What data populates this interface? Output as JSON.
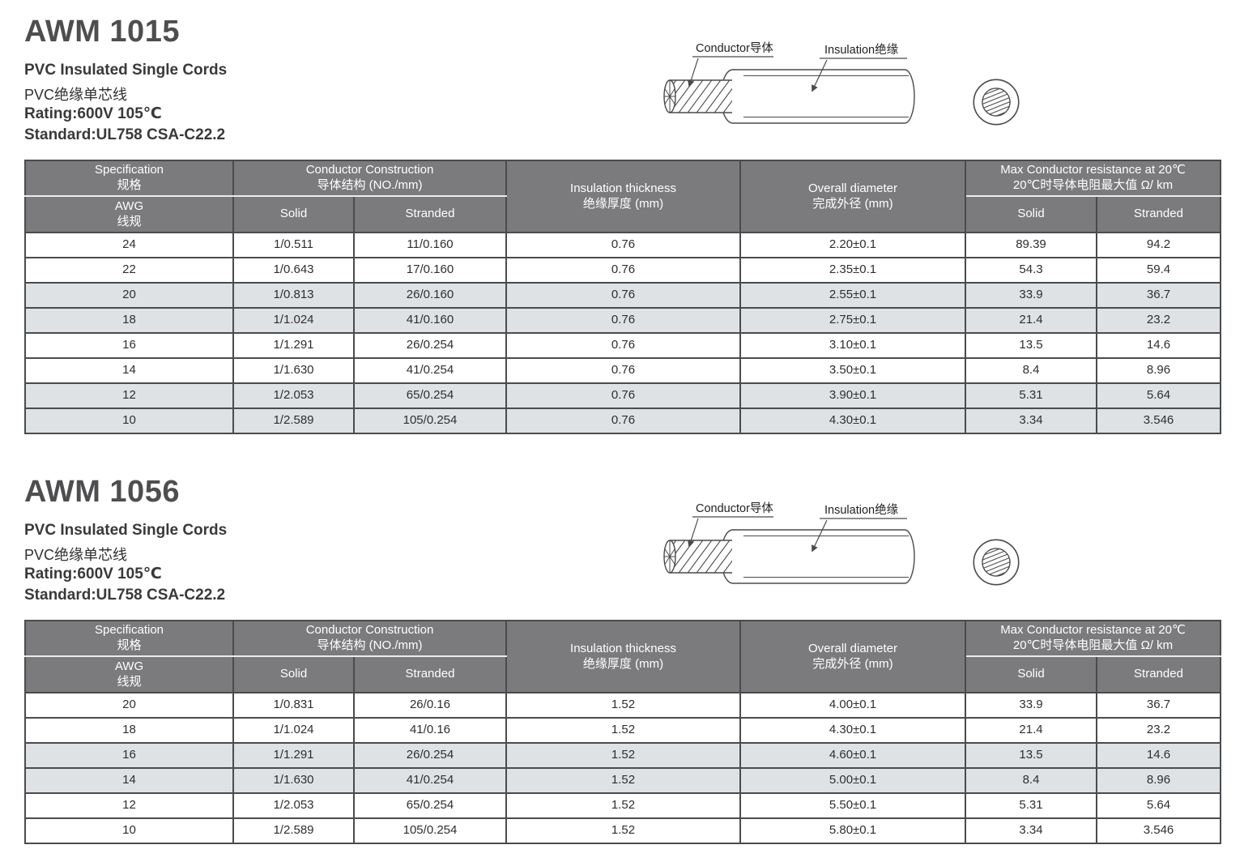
{
  "colors": {
    "header_bg": "#7b7b7d",
    "header_text": "#ffffff",
    "row_shade": "#dfe2e4",
    "table_border": "#4b4b4d",
    "title_text": "#4e4e50",
    "body_text": "#2e2e30"
  },
  "sections": [
    {
      "model": "AWM 1015",
      "subtitle_en": "PVC Insulated Single Cords",
      "subtitle_zh": "PVC绝缘单芯线",
      "rating": "Rating:600V 105℃",
      "standard": "Standard:UL758 CSA-C22.2",
      "diagram": {
        "conductor_label": "Conductor导体",
        "insulation_label": "Insulation绝缘"
      },
      "table": {
        "header": {
          "specification_en": "Specification",
          "specification_zh": "规格",
          "awg_en": "AWG",
          "awg_zh": "线规",
          "conductor_construction_en": "Conductor Construction",
          "conductor_construction_zh": "导体结构 (NO./mm)",
          "solid": "Solid",
          "stranded": "Stranded",
          "insulation_thickness_en": "Insulation thickness",
          "insulation_thickness_zh": "绝缘厚度 (mm)",
          "overall_diameter_en": "Overall diameter",
          "overall_diameter_zh": "完成外径 (mm)",
          "max_resistance_en": "Max Conductor resistance at 20℃",
          "max_resistance_zh": "20℃时导体电阻最大值 Ω/ km",
          "resistance_solid": "Solid",
          "resistance_stranded": "Stranded"
        },
        "rows": [
          {
            "awg": "24",
            "solid": "1/0.511",
            "stranded": "11/0.160",
            "thickness": "0.76",
            "diameter": "2.20±0.1",
            "res_solid": "89.39",
            "res_stranded": "94.2",
            "shaded": false
          },
          {
            "awg": "22",
            "solid": "1/0.643",
            "stranded": "17/0.160",
            "thickness": "0.76",
            "diameter": "2.35±0.1",
            "res_solid": "54.3",
            "res_stranded": "59.4",
            "shaded": false
          },
          {
            "awg": "20",
            "solid": "1/0.813",
            "stranded": "26/0.160",
            "thickness": "0.76",
            "diameter": "2.55±0.1",
            "res_solid": "33.9",
            "res_stranded": "36.7",
            "shaded": true
          },
          {
            "awg": "18",
            "solid": "1/1.024",
            "stranded": "41/0.160",
            "thickness": "0.76",
            "diameter": "2.75±0.1",
            "res_solid": "21.4",
            "res_stranded": "23.2",
            "shaded": true
          },
          {
            "awg": "16",
            "solid": "1/1.291",
            "stranded": "26/0.254",
            "thickness": "0.76",
            "diameter": "3.10±0.1",
            "res_solid": "13.5",
            "res_stranded": "14.6",
            "shaded": false
          },
          {
            "awg": "14",
            "solid": "1/1.630",
            "stranded": "41/0.254",
            "thickness": "0.76",
            "diameter": "3.50±0.1",
            "res_solid": "8.4",
            "res_stranded": "8.96",
            "shaded": false
          },
          {
            "awg": "12",
            "solid": "1/2.053",
            "stranded": "65/0.254",
            "thickness": "0.76",
            "diameter": "3.90±0.1",
            "res_solid": "5.31",
            "res_stranded": "5.64",
            "shaded": true
          },
          {
            "awg": "10",
            "solid": "1/2.589",
            "stranded": "105/0.254",
            "thickness": "0.76",
            "diameter": "4.30±0.1",
            "res_solid": "3.34",
            "res_stranded": "3.546",
            "shaded": true
          }
        ]
      }
    },
    {
      "model": "AWM 1056",
      "subtitle_en": "PVC Insulated Single Cords",
      "subtitle_zh": "PVC绝缘单芯线",
      "rating": "Rating:600V 105℃",
      "standard": "Standard:UL758 CSA-C22.2",
      "diagram": {
        "conductor_label": "Conductor导体",
        "insulation_label": "Insulation绝缘"
      },
      "table": {
        "header": {
          "specification_en": "Specification",
          "specification_zh": "规格",
          "awg_en": "AWG",
          "awg_zh": "线规",
          "conductor_construction_en": "Conductor Construction",
          "conductor_construction_zh": "导体结构 (NO./mm)",
          "solid": "Solid",
          "stranded": "Stranded",
          "insulation_thickness_en": "Insulation thickness",
          "insulation_thickness_zh": "绝缘厚度 (mm)",
          "overall_diameter_en": "Overall diameter",
          "overall_diameter_zh": "完成外径 (mm)",
          "max_resistance_en": "Max Conductor resistance at 20℃",
          "max_resistance_zh": "20℃时导体电阻最大值 Ω/ km",
          "resistance_solid": "Solid",
          "resistance_stranded": "Stranded"
        },
        "rows": [
          {
            "awg": "20",
            "solid": "1/0.831",
            "stranded": "26/0.16",
            "thickness": "1.52",
            "diameter": "4.00±0.1",
            "res_solid": "33.9",
            "res_stranded": "36.7",
            "shaded": false
          },
          {
            "awg": "18",
            "solid": "1/1.024",
            "stranded": "41/0.16",
            "thickness": "1.52",
            "diameter": "4.30±0.1",
            "res_solid": "21.4",
            "res_stranded": "23.2",
            "shaded": false
          },
          {
            "awg": "16",
            "solid": "1/1.291",
            "stranded": "26/0.254",
            "thickness": "1.52",
            "diameter": "4.60±0.1",
            "res_solid": "13.5",
            "res_stranded": "14.6",
            "shaded": true
          },
          {
            "awg": "14",
            "solid": "1/1.630",
            "stranded": "41/0.254",
            "thickness": "1.52",
            "diameter": "5.00±0.1",
            "res_solid": "8.4",
            "res_stranded": "8.96",
            "shaded": true
          },
          {
            "awg": "12",
            "solid": "1/2.053",
            "stranded": "65/0.254",
            "thickness": "1.52",
            "diameter": "5.50±0.1",
            "res_solid": "5.31",
            "res_stranded": "5.64",
            "shaded": false
          },
          {
            "awg": "10",
            "solid": "1/2.589",
            "stranded": "105/0.254",
            "thickness": "1.52",
            "diameter": "5.80±0.1",
            "res_solid": "3.34",
            "res_stranded": "3.546",
            "shaded": false
          }
        ]
      }
    }
  ]
}
